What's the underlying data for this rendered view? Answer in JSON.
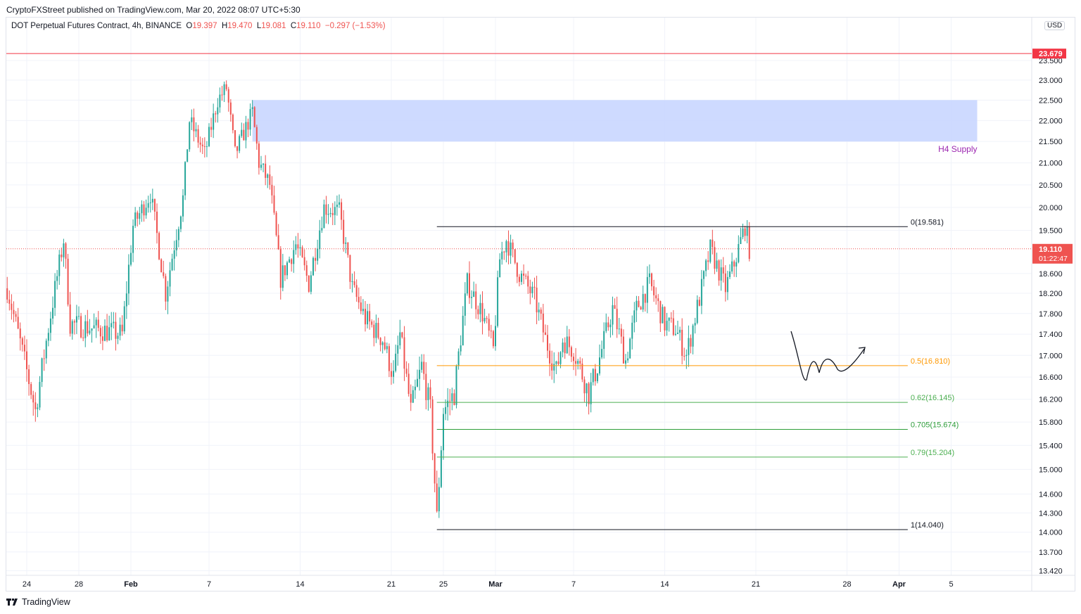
{
  "header": {
    "published": "CryptoFXStreet published on TradingView.com, Mar 20, 2022 08:07 UTC+5:30"
  },
  "legend": {
    "symbol": "DOT Perpetual Futures Contract, 4h, BINANCE",
    "o_label": "O",
    "o": "19.397",
    "h_label": "H",
    "h": "19.470",
    "l_label": "L",
    "l": "19.081",
    "c_label": "C",
    "c": "19.110",
    "change": "−0.297 (−1.53%)"
  },
  "footer": {
    "brand": "TradingView"
  },
  "colors": {
    "up": "#26a69a",
    "down": "#ef5350",
    "supply": "#c9d6ff",
    "fib_half": "#ff9800",
    "fib_green": "#4caf50",
    "resistance": "#f23645"
  },
  "chart_data": {
    "type": "candlestick",
    "scale": "log",
    "currency": "USD",
    "interval": "4h",
    "ylim": [
      13.42,
      24.0
    ],
    "y_ticks": [
      "23.500",
      "23.000",
      "22.500",
      "22.000",
      "21.500",
      "21.000",
      "20.500",
      "20.000",
      "19.500",
      "18.600",
      "18.200",
      "17.800",
      "17.400",
      "17.000",
      "16.600",
      "16.200",
      "15.800",
      "15.400",
      "15.000",
      "14.600",
      "14.300",
      "14.000",
      "13.700",
      "13.420"
    ],
    "x_ticks": [
      "24",
      "28",
      "Feb",
      "7",
      "14",
      "21",
      "25",
      "Mar",
      "7",
      "14",
      "21",
      "28",
      "Apr",
      "5"
    ],
    "x_tick_dates": [
      "2022-01-24",
      "2022-01-28",
      "2022-02-01",
      "2022-02-07",
      "2022-02-14",
      "2022-02-21",
      "2022-02-25",
      "2022-03-01",
      "2022-03-07",
      "2022-03-14",
      "2022-03-21",
      "2022-03-28",
      "2022-04-01",
      "2022-04-05"
    ],
    "price_path_approx": [
      [
        "2022-01-22T12:00",
        18.3
      ],
      [
        "2022-01-24T16:00",
        16.0
      ],
      [
        "2022-01-26T20:00",
        19.3
      ],
      [
        "2022-01-27T08:00",
        17.6
      ],
      [
        "2022-01-31T08:00",
        17.4
      ],
      [
        "2022-02-01T04:00",
        19.6
      ],
      [
        "2022-02-02T12:00",
        20.3
      ],
      [
        "2022-02-03T16:00",
        18.2
      ],
      [
        "2022-02-05T00:00",
        20.2
      ],
      [
        "2022-02-05T12:00",
        22.0
      ],
      [
        "2022-02-06T16:00",
        21.2
      ],
      [
        "2022-02-07T16:00",
        22.5
      ],
      [
        "2022-02-08T08:00",
        22.8
      ],
      [
        "2022-02-09T00:00",
        21.2
      ],
      [
        "2022-02-10T08:00",
        22.2
      ],
      [
        "2022-02-10T20:00",
        21.0
      ],
      [
        "2022-02-11T16:00",
        20.5
      ],
      [
        "2022-02-12T12:00",
        18.5
      ],
      [
        "2022-02-13T16:00",
        19.2
      ],
      [
        "2022-02-14T16:00",
        18.4
      ],
      [
        "2022-02-15T20:00",
        20.0
      ],
      [
        "2022-02-17T00:00",
        19.9
      ],
      [
        "2022-02-18T00:00",
        18.3
      ],
      [
        "2022-02-19T00:00",
        17.7
      ],
      [
        "2022-02-20T08:00",
        17.3
      ],
      [
        "2022-02-21T04:00",
        16.6
      ],
      [
        "2022-02-21T16:00",
        17.4
      ],
      [
        "2022-02-22T12:00",
        16.0
      ],
      [
        "2022-02-23T08:00",
        16.8
      ],
      [
        "2022-02-24T00:00",
        16.0
      ],
      [
        "2022-02-24T12:00",
        14.2
      ],
      [
        "2022-02-25T00:00",
        16.0
      ],
      [
        "2022-02-25T20:00",
        16.3
      ],
      [
        "2022-02-26T20:00",
        18.4
      ],
      [
        "2022-02-28T00:00",
        17.8
      ],
      [
        "2022-02-28T20:00",
        17.1
      ],
      [
        "2022-03-01T08:00",
        18.9
      ],
      [
        "2022-03-01T20:00",
        19.3
      ],
      [
        "2022-03-02T20:00",
        18.6
      ],
      [
        "2022-03-04T00:00",
        18.1
      ],
      [
        "2022-03-04T20:00",
        17.3
      ],
      [
        "2022-03-05T16:00",
        16.7
      ],
      [
        "2022-03-06T04:00",
        17.3
      ],
      [
        "2022-03-07T00:00",
        17.1
      ],
      [
        "2022-03-08T04:00",
        16.3
      ],
      [
        "2022-03-08T20:00",
        16.8
      ],
      [
        "2022-03-10T00:00",
        17.9
      ],
      [
        "2022-03-11T00:00",
        16.9
      ],
      [
        "2022-03-11T20:00",
        17.9
      ],
      [
        "2022-03-12T20:00",
        18.4
      ],
      [
        "2022-03-14T00:00",
        17.6
      ],
      [
        "2022-03-14T20:00",
        17.5
      ],
      [
        "2022-03-15T16:00",
        17.0
      ],
      [
        "2022-03-16T16:00",
        18.1
      ],
      [
        "2022-03-17T12:00",
        19.1
      ],
      [
        "2022-03-18T16:00",
        18.3
      ],
      [
        "2022-03-19T08:00",
        18.8
      ],
      [
        "2022-03-20T04:00",
        19.6
      ],
      [
        "2022-03-20T12:00",
        19.11
      ]
    ],
    "last_price": {
      "value": 19.11,
      "label": "19.110",
      "countdown": "01:22:47"
    },
    "resistance": {
      "value": 23.679,
      "label": "23.679"
    },
    "supply_zone": {
      "label": "H4 Supply",
      "low": 21.5,
      "high": 22.5,
      "start": "2022-02-10T08:00",
      "end": "2022-04-07T00:00"
    },
    "fib": {
      "start": "2022-02-24T12:00",
      "end": "2022-04-01T16:00",
      "levels": [
        {
          "label": "0(19.581)",
          "value": 19.581,
          "color": "#131722"
        },
        {
          "label": "0.5(16.810)",
          "value": 16.81,
          "color": "#ff9800"
        },
        {
          "label": "0.62(16.145)",
          "value": 16.145,
          "color": "#4caf50"
        },
        {
          "label": "0.705(15.674)",
          "value": 15.674,
          "color": "#2e9d3a"
        },
        {
          "label": "0.79(15.204)",
          "value": 15.204,
          "color": "#4caf50"
        },
        {
          "label": "1(14.040)",
          "value": 14.04,
          "color": "#131722"
        }
      ]
    }
  }
}
